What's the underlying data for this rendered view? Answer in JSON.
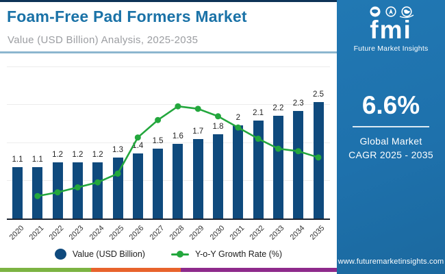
{
  "header": {
    "title": "Foam-Free Pad Formers Market",
    "subtitle": "Value (USD Billion) Analysis, 2025-2035"
  },
  "sidebar": {
    "logo_text": "fmi",
    "logo_tagline": "Future Market Insights",
    "cagr_value": "6.6%",
    "cagr_line1": "Global Market",
    "cagr_line2": "CAGR 2025 - 2035",
    "website": "www.futuremarketinsights.com"
  },
  "legend": {
    "value_label": "Value (USD Billion)",
    "growth_label": "Y-o-Y Growth Rate (%)"
  },
  "chart_data": {
    "type": "bar",
    "title": "Foam-Free Pad Formers Market - Value (USD Billion), 2020-2035",
    "categories": [
      "2020",
      "2021",
      "2022",
      "2023",
      "2024",
      "2025",
      "2026",
      "2027",
      "2028",
      "2029",
      "2030",
      "2031",
      "2032",
      "2033",
      "2034",
      "2035"
    ],
    "series": [
      {
        "name": "Value (USD Billion)",
        "type": "bar",
        "values": [
          1.1,
          1.1,
          1.2,
          1.2,
          1.2,
          1.3,
          1.4,
          1.5,
          1.6,
          1.7,
          1.8,
          2,
          2.1,
          2.2,
          2.3,
          2.5
        ]
      },
      {
        "name": "Y-o-Y Growth Rate (%)",
        "type": "line",
        "axis_labeled": false,
        "values_estimated": true,
        "values": [
          null,
          1.8,
          2.1,
          2.5,
          2.9,
          3.6,
          6.5,
          7.9,
          9.0,
          8.8,
          8.2,
          7.3,
          6.4,
          5.6,
          5.4,
          4.9
        ]
      }
    ],
    "xlabel": "",
    "ylabel": "",
    "ylim": [
      0,
      3.2
    ],
    "grid": true,
    "legend_position": "bottom",
    "value_labels_shown": true
  },
  "colors": {
    "bar": "#0f4a7d",
    "line": "#23a73d",
    "title": "#1a72a7",
    "subtitle": "#9b9da1",
    "sidebar_bg": "#1e71ac",
    "divider": "#8cb6cf",
    "top_accent": "#0e3357",
    "stripe": [
      "#7cb342",
      "#e8632c",
      "#8e2a8b"
    ]
  }
}
